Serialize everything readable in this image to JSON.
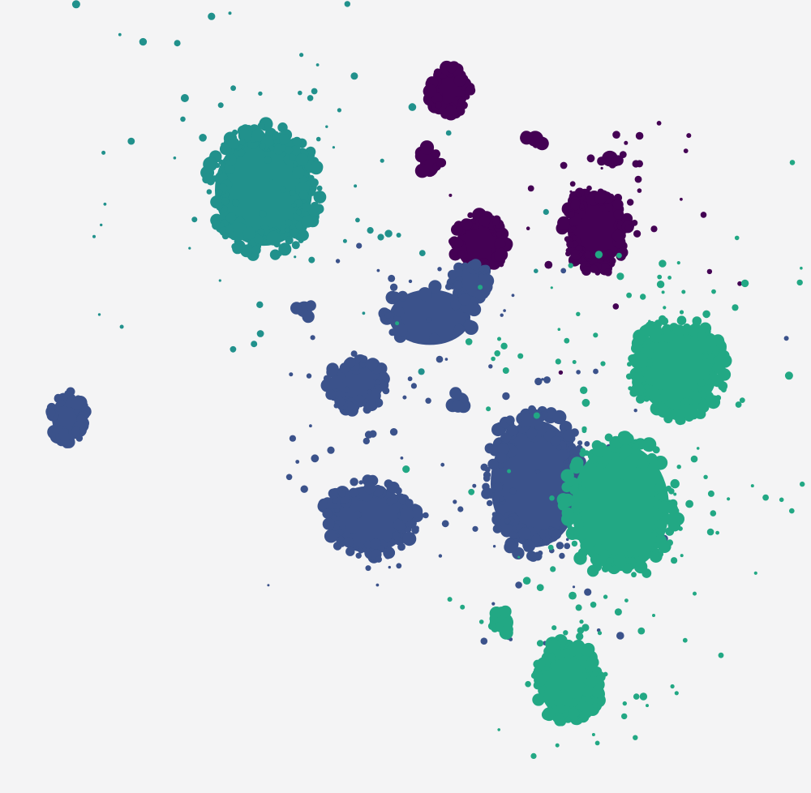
{
  "chart_data": {
    "type": "scatter",
    "title": "",
    "xlabel": "",
    "ylabel": "",
    "xlim": [
      0,
      100
    ],
    "ylim": [
      0,
      100
    ],
    "grid": false,
    "axes_visible": false,
    "legend": "none",
    "series": [
      {
        "color": "#440154",
        "clusters": [
          {
            "x": 55.5,
            "y": 88.5,
            "sx": 2.2,
            "sy": 2.6,
            "n": 60,
            "spread": 0
          },
          {
            "x": 59.2,
            "y": 69.2,
            "sx": 2.9,
            "sy": 3.3,
            "n": 70,
            "spread": 0
          },
          {
            "x": 73.5,
            "y": 71.0,
            "sx": 3.5,
            "sy": 4.5,
            "n": 110,
            "spread": 6
          },
          {
            "x": 66.0,
            "y": 82.5,
            "sx": 1.0,
            "sy": 1.0,
            "n": 5,
            "spread": 0
          },
          {
            "x": 53.0,
            "y": 79.5,
            "sx": 1.2,
            "sy": 1.8,
            "n": 8,
            "spread": 0
          },
          {
            "x": 75.2,
            "y": 80.0,
            "sx": 1.0,
            "sy": 1.0,
            "n": 4,
            "spread": 0
          }
        ]
      },
      {
        "color": "#21918c",
        "clusters": [
          {
            "x": 32.5,
            "y": 76.0,
            "sx": 6.0,
            "sy": 7.0,
            "n": 200,
            "spread": 12
          }
        ]
      },
      {
        "color": "#3b528b",
        "clusters": [
          {
            "x": 8.4,
            "y": 47.3,
            "sx": 2.0,
            "sy": 2.8,
            "n": 70,
            "spread": 0
          },
          {
            "x": 44.0,
            "y": 51.5,
            "sx": 3.2,
            "sy": 2.8,
            "n": 55,
            "spread": 3
          },
          {
            "x": 45.5,
            "y": 34.5,
            "sx": 5.0,
            "sy": 4.2,
            "n": 95,
            "spread": 4
          },
          {
            "x": 66.0,
            "y": 39.0,
            "sx": 5.5,
            "sy": 8.0,
            "n": 170,
            "spread": 8
          },
          {
            "x": 58.0,
            "y": 64.5,
            "sx": 2.0,
            "sy": 2.2,
            "n": 30,
            "spread": 0
          },
          {
            "x": 53.0,
            "y": 60.0,
            "sx": 5.0,
            "sy": 3.5,
            "n": 25,
            "spread": 3
          },
          {
            "x": 37.5,
            "y": 61.0,
            "sx": 1.0,
            "sy": 1.0,
            "n": 5,
            "spread": 0
          },
          {
            "x": 56.8,
            "y": 49.5,
            "sx": 1.0,
            "sy": 1.0,
            "n": 5,
            "spread": 0
          }
        ]
      },
      {
        "color": "#22a884",
        "clusters": [
          {
            "x": 83.5,
            "y": 53.5,
            "sx": 5.0,
            "sy": 5.5,
            "n": 160,
            "spread": 10
          },
          {
            "x": 76.5,
            "y": 36.0,
            "sx": 6.0,
            "sy": 8.0,
            "n": 120,
            "spread": 12
          },
          {
            "x": 70.0,
            "y": 14.0,
            "sx": 3.5,
            "sy": 4.5,
            "n": 110,
            "spread": 5
          },
          {
            "x": 62.0,
            "y": 21.5,
            "sx": 1.3,
            "sy": 1.3,
            "n": 10,
            "spread": 0
          }
        ]
      }
    ]
  }
}
